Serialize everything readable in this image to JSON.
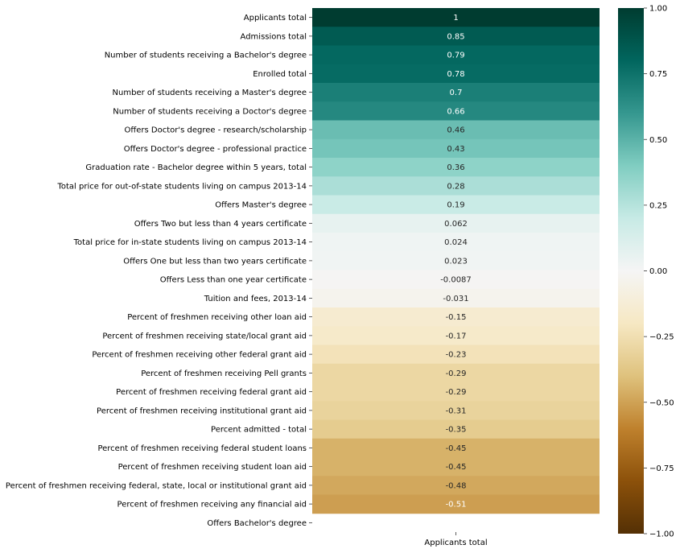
{
  "chart_data": {
    "type": "heatmap",
    "x_categories": [
      "Applicants total"
    ],
    "y_categories": [
      "Applicants total",
      "Admissions total",
      "Number of students receiving a Bachelor's degree",
      "Enrolled total",
      "Number of students receiving a Master's degree",
      "Number of students receiving a Doctor's degree",
      "Offers Doctor's degree - research/scholarship",
      "Offers Doctor's degree - professional practice",
      "Graduation rate - Bachelor degree within 5 years, total",
      "Total price for out-of-state students living on campus 2013-14",
      "Offers Master's degree",
      "Offers Two but less than 4 years certificate",
      "Total price for in-state students living on campus 2013-14",
      "Offers One but less than two years certificate",
      "Offers Less than one year certificate",
      "Tuition and fees, 2013-14",
      "Percent of freshmen receiving other loan aid",
      "Percent of freshmen receiving state/local grant aid",
      "Percent of freshmen receiving other federal grant aid",
      "Percent of freshmen receiving Pell grants",
      "Percent of freshmen receiving federal grant aid",
      "Percent of freshmen receiving institutional grant aid",
      "Percent admitted - total",
      "Percent of freshmen receiving federal student loans",
      "Percent of freshmen receiving student loan aid",
      "Percent of freshmen receiving federal, state, local or institutional grant aid",
      "Percent of freshmen receiving any financial aid",
      "Offers Bachelor's degree"
    ],
    "values": [
      1,
      0.85,
      0.79,
      0.78,
      0.7,
      0.66,
      0.46,
      0.43,
      0.36,
      0.28,
      0.19,
      0.062,
      0.024,
      0.023,
      -0.0087,
      -0.031,
      -0.15,
      -0.17,
      -0.23,
      -0.29,
      -0.29,
      -0.31,
      -0.35,
      -0.45,
      -0.45,
      -0.48,
      -0.51,
      null
    ],
    "value_labels": [
      "1",
      "0.85",
      "0.79",
      "0.78",
      "0.7",
      "0.66",
      "0.46",
      "0.43",
      "0.36",
      "0.28",
      "0.19",
      "0.062",
      "0.024",
      "0.023",
      "-0.0087",
      "-0.031",
      "-0.15",
      "-0.17",
      "-0.23",
      "-0.29",
      "-0.29",
      "-0.31",
      "-0.35",
      "-0.45",
      "-0.45",
      "-0.48",
      "-0.51",
      ""
    ],
    "colormap": "BrBG",
    "vmin": -1,
    "vmax": 1,
    "colorbar_ticks": [
      1.0,
      0.75,
      0.5,
      0.25,
      0.0,
      -0.25,
      -0.5,
      -0.75,
      -1.0
    ],
    "colorbar_tick_labels": [
      "1.00",
      "0.75",
      "0.50",
      "0.25",
      "0.00",
      "−0.25",
      "−0.50",
      "−0.75",
      "−1.00"
    ]
  }
}
